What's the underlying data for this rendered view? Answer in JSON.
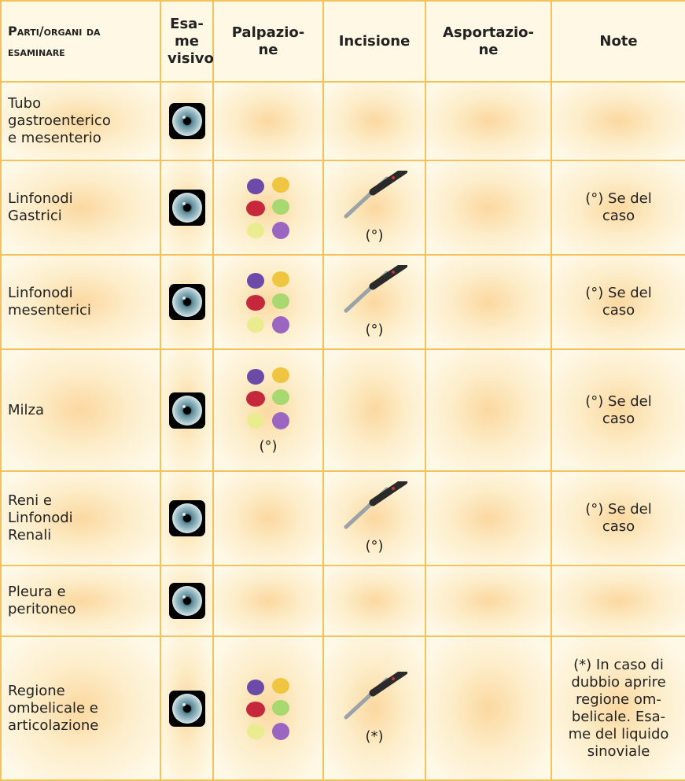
{
  "header": {
    "parti": "Parti/organi da esaminare",
    "esame": "Esa-\nme\nvisivo",
    "palpazione": "Palpazio-\nne",
    "incisione": "Incisione",
    "asportazione": "Asportazio-\nne",
    "note": "Note"
  },
  "rows": [
    {
      "part": "Tubo\ngastroenterico\ne mesenterio"
    },
    {
      "part": "Linfonodi\nGastrici",
      "incisione": "(°)",
      "note": "(°) Se del\ncaso"
    },
    {
      "part": "Linfonodi\nmesenterici",
      "incisione": "(°)",
      "note": "(°) Se del\ncaso"
    },
    {
      "part": "Milza",
      "palpazione": "(°)",
      "note": "(°) Se del\ncaso"
    },
    {
      "part": "Reni e\nLinfonodi\nRenali",
      "incisione": "(°)",
      "note": "(°) Se del\ncaso"
    },
    {
      "part": "Pleura e\nperitoneo"
    },
    {
      "part": "Regione\nombelicale e\narticolazione",
      "incisione": "(*)",
      "note": "(*) In caso di\ndubbio aprire\nregione om-\nbelicale. Esa-\nme del liquido\nsinoviale"
    }
  ]
}
